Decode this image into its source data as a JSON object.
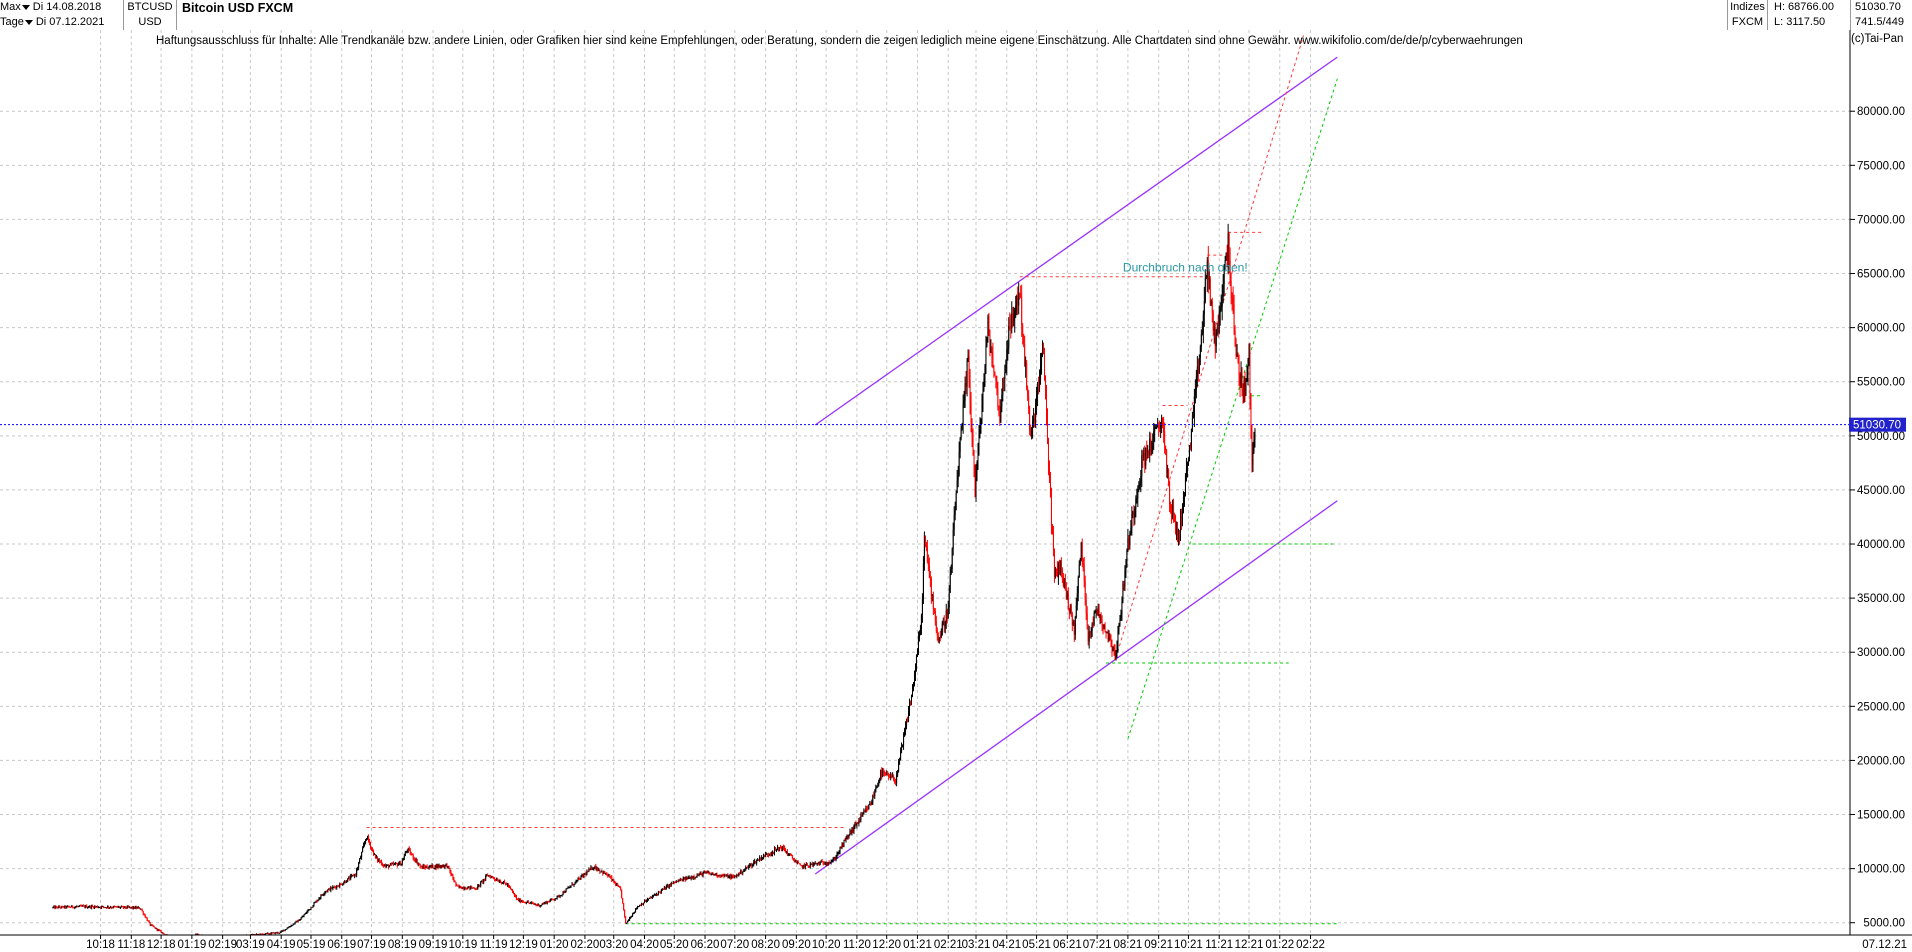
{
  "header": {
    "period_label": "Max",
    "interval_label": "Tage",
    "date_from": "Di 14.08.2018",
    "date_to": "Di 07.12.2021",
    "symbol": "BTCUSD",
    "currency": "USD",
    "title": "Bitcoin USD FXCM",
    "market": "Indizes",
    "exchange": "FXCM",
    "high": "H: 68766.00",
    "low": "L: 3117.50",
    "last_price": "51030.70",
    "last_change": "741.5/449"
  },
  "disclaimer": "Haftungsausschluss für Inhalte: Alle Trendkanäle bzw. andere Linien, oder Grafiken hier sind keine Empfehlungen, oder Beratung, sondern die zeigen lediglich meine eigene Einschätzung. Alle Chartdaten sind ohne Gewähr.  www.wikifolio.com/de/de/p/cyberwaehrungen",
  "copyright": "(c)Tai-Pan",
  "colors": {
    "up": "#000000",
    "down": "#ff0000",
    "channel": "#9b30ff",
    "support": "#00cc00",
    "resistance": "#ff3b3b",
    "price_line": "#0000ff",
    "annotation": "#2a9aa6",
    "price_box": "#2222cc",
    "grid": "#c8c8c8"
  },
  "chart_data": {
    "type": "candlestick",
    "title": "Bitcoin USD FXCM",
    "y_scale": "linear",
    "y_range": [
      2000,
      87000
    ],
    "y_ticks": [
      "5000.00",
      "10000.00",
      "15000.00",
      "20000.00",
      "25000.00",
      "30000.00",
      "35000.00",
      "40000.00",
      "45000.00",
      "50000.00",
      "55000.00",
      "60000.00",
      "65000.00",
      "70000.00",
      "75000.00",
      "80000.00"
    ],
    "x_tick_labels": [
      "10:18",
      "11:18",
      "12:18",
      "01:19",
      "02:19",
      "03:19",
      "04:19",
      "05:19",
      "06:19",
      "07:19",
      "08:19",
      "09:19",
      "10:19",
      "11:19",
      "12:19",
      "01:20",
      "02:20",
      "03:20",
      "04:20",
      "05:20",
      "06:20",
      "07:20",
      "08:20",
      "09:20",
      "10:20",
      "11:20",
      "12:20",
      "01:21",
      "02:21",
      "03:21",
      "04:21",
      "05:21",
      "06:21",
      "07:21",
      "08:21",
      "09:21",
      "10:21",
      "11:21",
      "12:21",
      "01:22",
      "02:22"
    ],
    "x_end_label": "07.12.21",
    "grid": true,
    "current_price": 51030.7,
    "current_price_label": "51030.70",
    "price_path": [
      [
        "2018-08-14",
        6400
      ],
      [
        "2018-09-10",
        6500
      ],
      [
        "2018-10-15",
        6450
      ],
      [
        "2018-11-10",
        6350
      ],
      [
        "2018-11-20",
        4800
      ],
      [
        "2018-12-15",
        3300
      ],
      [
        "2019-01-05",
        3900
      ],
      [
        "2019-02-01",
        3450
      ],
      [
        "2019-03-01",
        3850
      ],
      [
        "2019-03-31",
        4100
      ],
      [
        "2019-04-20",
        5300
      ],
      [
        "2019-05-15",
        7900
      ],
      [
        "2019-06-01",
        8600
      ],
      [
        "2019-06-15",
        9500
      ],
      [
        "2019-06-26",
        13000
      ],
      [
        "2019-07-05",
        11000
      ],
      [
        "2019-07-15",
        10200
      ],
      [
        "2019-07-31",
        10500
      ],
      [
        "2019-08-06",
        11800
      ],
      [
        "2019-08-20",
        10100
      ],
      [
        "2019-09-15",
        10300
      ],
      [
        "2019-09-25",
        8300
      ],
      [
        "2019-10-15",
        8200
      ],
      [
        "2019-10-26",
        9400
      ],
      [
        "2019-11-15",
        8500
      ],
      [
        "2019-11-25",
        7100
      ],
      [
        "2019-12-17",
        6600
      ],
      [
        "2020-01-05",
        7400
      ],
      [
        "2020-02-10",
        10200
      ],
      [
        "2020-02-25",
        9300
      ],
      [
        "2020-03-08",
        8000
      ],
      [
        "2020-03-13",
        4900
      ],
      [
        "2020-03-25",
        6500
      ],
      [
        "2020-04-30",
        8700
      ],
      [
        "2020-05-10",
        9000
      ],
      [
        "2020-06-01",
        9600
      ],
      [
        "2020-06-30",
        9200
      ],
      [
        "2020-07-27",
        11000
      ],
      [
        "2020-08-17",
        12000
      ],
      [
        "2020-09-05",
        10200
      ],
      [
        "2020-10-08",
        10700
      ],
      [
        "2020-10-22",
        12900
      ],
      [
        "2020-11-15",
        16000
      ],
      [
        "2020-11-25",
        18800
      ],
      [
        "2020-12-10",
        18200
      ],
      [
        "2020-12-16",
        21000
      ],
      [
        "2020-12-27",
        26500
      ],
      [
        "2021-01-05",
        33000
      ],
      [
        "2021-01-08",
        40500
      ],
      [
        "2021-01-22",
        31000
      ],
      [
        "2021-02-01",
        34000
      ],
      [
        "2021-02-10",
        46000
      ],
      [
        "2021-02-21",
        57000
      ],
      [
        "2021-02-28",
        45000
      ],
      [
        "2021-03-13",
        60000
      ],
      [
        "2021-03-25",
        52000
      ],
      [
        "2021-04-02",
        59000
      ],
      [
        "2021-04-14",
        63500
      ],
      [
        "2021-04-25",
        49500
      ],
      [
        "2021-05-08",
        58000
      ],
      [
        "2021-05-12",
        49500
      ],
      [
        "2021-05-19",
        37000
      ],
      [
        "2021-05-25",
        38000
      ],
      [
        "2021-06-08",
        32000
      ],
      [
        "2021-06-15",
        40000
      ],
      [
        "2021-06-22",
        31500
      ],
      [
        "2021-07-01",
        34000
      ],
      [
        "2021-07-20",
        29800
      ],
      [
        "2021-08-01",
        40000
      ],
      [
        "2021-08-15",
        47500
      ],
      [
        "2021-09-05",
        51500
      ],
      [
        "2021-09-12",
        44000
      ],
      [
        "2021-09-21",
        40500
      ],
      [
        "2021-10-05",
        51000
      ],
      [
        "2021-10-15",
        60000
      ],
      [
        "2021-10-20",
        66000
      ],
      [
        "2021-10-28",
        58000
      ],
      [
        "2021-11-10",
        68000
      ],
      [
        "2021-11-18",
        57000
      ],
      [
        "2021-11-26",
        54000
      ],
      [
        "2021-12-01",
        57000
      ],
      [
        "2021-12-04",
        47000
      ],
      [
        "2021-12-07",
        51000
      ]
    ],
    "lines": [
      {
        "name": "Upper trend channel",
        "color": "channel",
        "style": "solid",
        "from": [
          "2020-09-20",
          51000
        ],
        "to": [
          "2022-02-28",
          85000
        ]
      },
      {
        "name": "Lower trend channel",
        "color": "channel",
        "style": "solid",
        "from": [
          "2020-09-20",
          9500
        ],
        "to": [
          "2022-02-28",
          44000
        ]
      },
      {
        "name": "Resistance 2019",
        "color": "resistance",
        "style": "dashed",
        "from": [
          "2019-06-26",
          13800
        ],
        "to": [
          "2020-10-20",
          13800
        ]
      },
      {
        "name": "Resistance April 2021",
        "color": "resistance",
        "style": "dashed",
        "from": [
          "2021-04-14",
          64700
        ],
        "to": [
          "2021-10-20",
          64700
        ]
      },
      {
        "name": "Resistance ATH",
        "color": "resistance",
        "style": "dashed",
        "from": [
          "2021-11-10",
          68800
        ],
        "to": [
          "2021-12-15",
          68800
        ]
      },
      {
        "name": "Resistance Oct 2021",
        "color": "resistance",
        "style": "dashed",
        "from": [
          "2021-10-20",
          66700
        ],
        "to": [
          "2021-11-05",
          66700
        ]
      },
      {
        "name": "Resistance Sep 2021",
        "color": "resistance",
        "style": "dashed",
        "from": [
          "2021-09-05",
          52800
        ],
        "to": [
          "2021-09-30",
          52800
        ]
      },
      {
        "name": "Steep trend",
        "color": "resistance",
        "style": "dashed",
        "from": [
          "2021-07-20",
          29500
        ],
        "to": [
          "2022-01-25",
          87000
        ]
      },
      {
        "name": "Support trend",
        "color": "support",
        "style": "dashed",
        "from": [
          "2021-08-01",
          22000
        ],
        "to": [
          "2022-02-28",
          83000
        ]
      },
      {
        "name": "Support 40000",
        "color": "support",
        "style": "dashed",
        "from": [
          "2021-10-05",
          40000
        ],
        "to": [
          "2022-02-25",
          40000
        ]
      },
      {
        "name": "Support 29000",
        "color": "support",
        "style": "dashed",
        "from": [
          "2021-07-10",
          29000
        ],
        "to": [
          "2022-01-10",
          29000
        ]
      },
      {
        "name": "Support 4900",
        "color": "support",
        "style": "dashed",
        "from": [
          "2020-03-13",
          4900
        ],
        "to": [
          "2022-02-28",
          4900
        ]
      },
      {
        "name": "Bottom support",
        "color": "support",
        "style": "dashed",
        "from": [
          "2018-08-14",
          3700
        ],
        "to": [
          "2022-02-28",
          3700
        ]
      },
      {
        "name": "Short support",
        "color": "support",
        "style": "dashed",
        "from": [
          "2021-12-03",
          53700
        ],
        "to": [
          "2021-12-15",
          53700
        ]
      }
    ],
    "annotations": [
      {
        "text": "Durchbruch nach oben!",
        "date": "2021-07-27",
        "value": 65200
      }
    ]
  }
}
